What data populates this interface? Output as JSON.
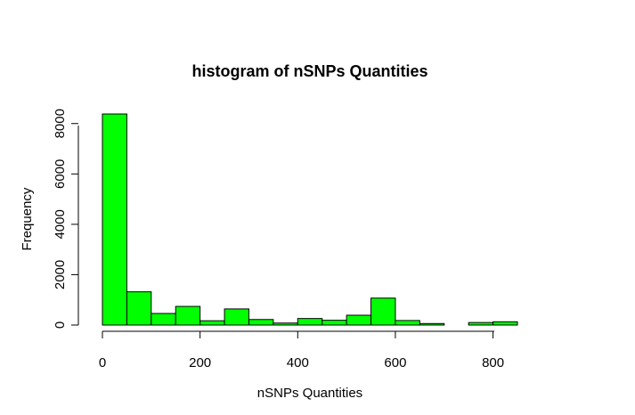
{
  "chart_data": {
    "type": "bar",
    "title": "histogram of nSNPs Quantities",
    "xlabel": "nSNPs Quantities",
    "ylabel": "Frequency",
    "bin_edges": [
      0,
      50,
      100,
      150,
      200,
      250,
      300,
      350,
      400,
      450,
      500,
      550,
      600,
      650,
      700,
      750,
      800,
      850
    ],
    "values": [
      8380,
      1320,
      460,
      740,
      170,
      640,
      220,
      80,
      260,
      190,
      390,
      1070,
      180,
      60,
      0,
      100,
      130
    ],
    "xlim": [
      0,
      850
    ],
    "ylim": [
      0,
      8380
    ],
    "x_ticks": [
      0,
      200,
      400,
      600,
      800
    ],
    "y_ticks": [
      0,
      2000,
      4000,
      6000,
      8000
    ],
    "grid": false,
    "legend": "none",
    "bar_color": "#00ff00",
    "edge_color": "#000000"
  }
}
